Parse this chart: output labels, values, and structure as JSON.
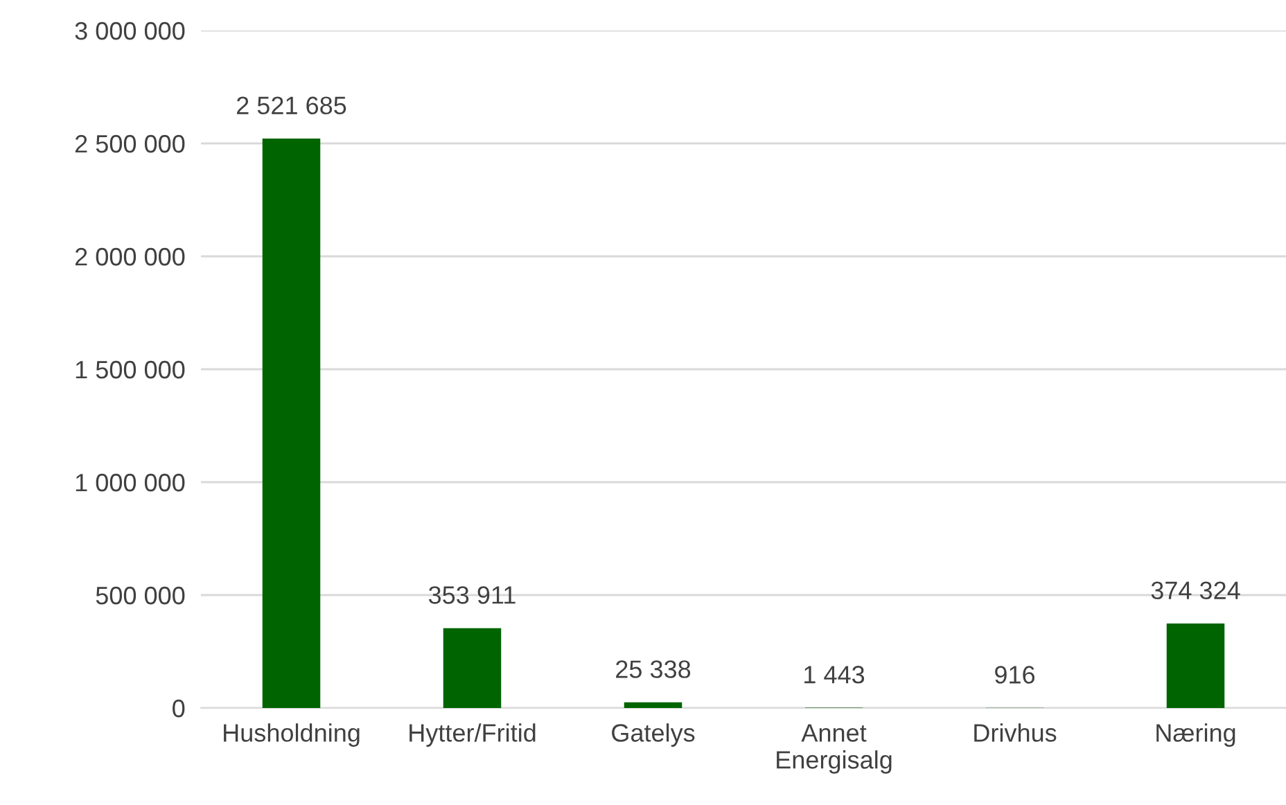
{
  "chart_data": {
    "type": "bar",
    "categories": [
      "Husholdning",
      "Hytter/Fritid",
      "Gatelys",
      "Annet Energisalg",
      "Drivhus",
      "Næring"
    ],
    "values": [
      2521685,
      353911,
      25338,
      1443,
      916,
      374324
    ],
    "value_labels": [
      "2 521 685",
      "353 911",
      "25 338",
      "1 443",
      "916",
      "374 324"
    ],
    "color": "#006400",
    "ylim": [
      0,
      3000000
    ],
    "yticks": [
      {
        "value": 0,
        "label": "0"
      },
      {
        "value": 500000,
        "label": "500 000"
      },
      {
        "value": 1000000,
        "label": "1 000 000"
      },
      {
        "value": 1500000,
        "label": "1 500 000"
      },
      {
        "value": 2000000,
        "label": "2 000 000"
      },
      {
        "value": 2500000,
        "label": "2 500 000"
      },
      {
        "value": 3000000,
        "label": "3 000 000"
      }
    ],
    "grid": "y",
    "legend": false
  }
}
